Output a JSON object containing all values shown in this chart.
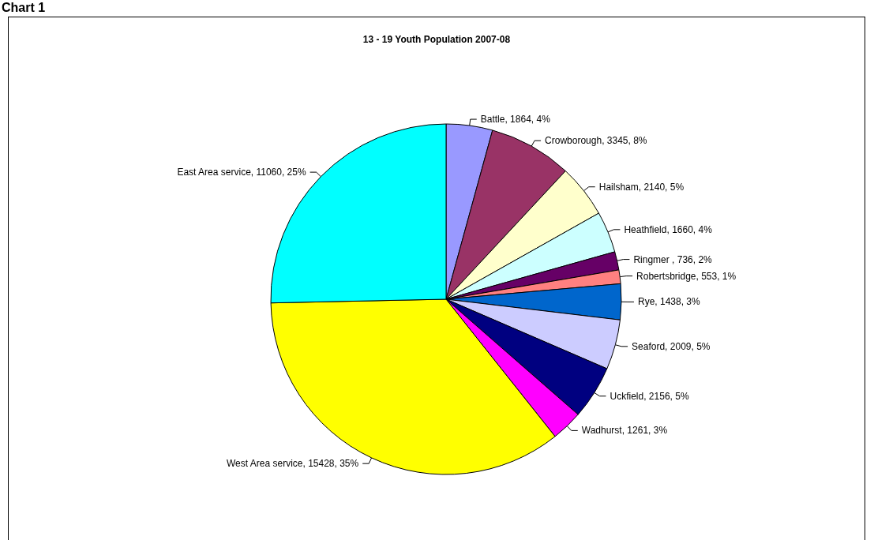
{
  "chart_data": {
    "type": "pie",
    "title": "13 - 19 Youth Population 2007-08",
    "annotations": [
      "Chart 1"
    ],
    "categories": [
      "Battle",
      "Crowborough",
      "Hailsham",
      "Heathfield",
      "Ringmer ",
      "Robertsbridge",
      "Rye",
      "Seaford",
      "Uckfield",
      "Wadhurst",
      "West Area service",
      "East Area service"
    ],
    "values": [
      1864,
      3345,
      2140,
      1660,
      736,
      553,
      1438,
      2009,
      2156,
      1261,
      15428,
      11060
    ],
    "value_labels": [
      "1864, 4%",
      "3345, 8%",
      "2140, 5%",
      "1660, 4%",
      "736, 2%",
      "553, 1%",
      "1438, 3%",
      "2009, 5%",
      "2156, 5%",
      "1261, 3%",
      "15428, 35%",
      "11060, 25%"
    ],
    "colors": [
      "#9999ff",
      "#993366",
      "#ffffcc",
      "#ccffff",
      "#660066",
      "#ff8080",
      "#0066cc",
      "#ccccff",
      "#000080",
      "#ff00ff",
      "#ffff00",
      "#00ffff"
    ],
    "legend": false
  }
}
